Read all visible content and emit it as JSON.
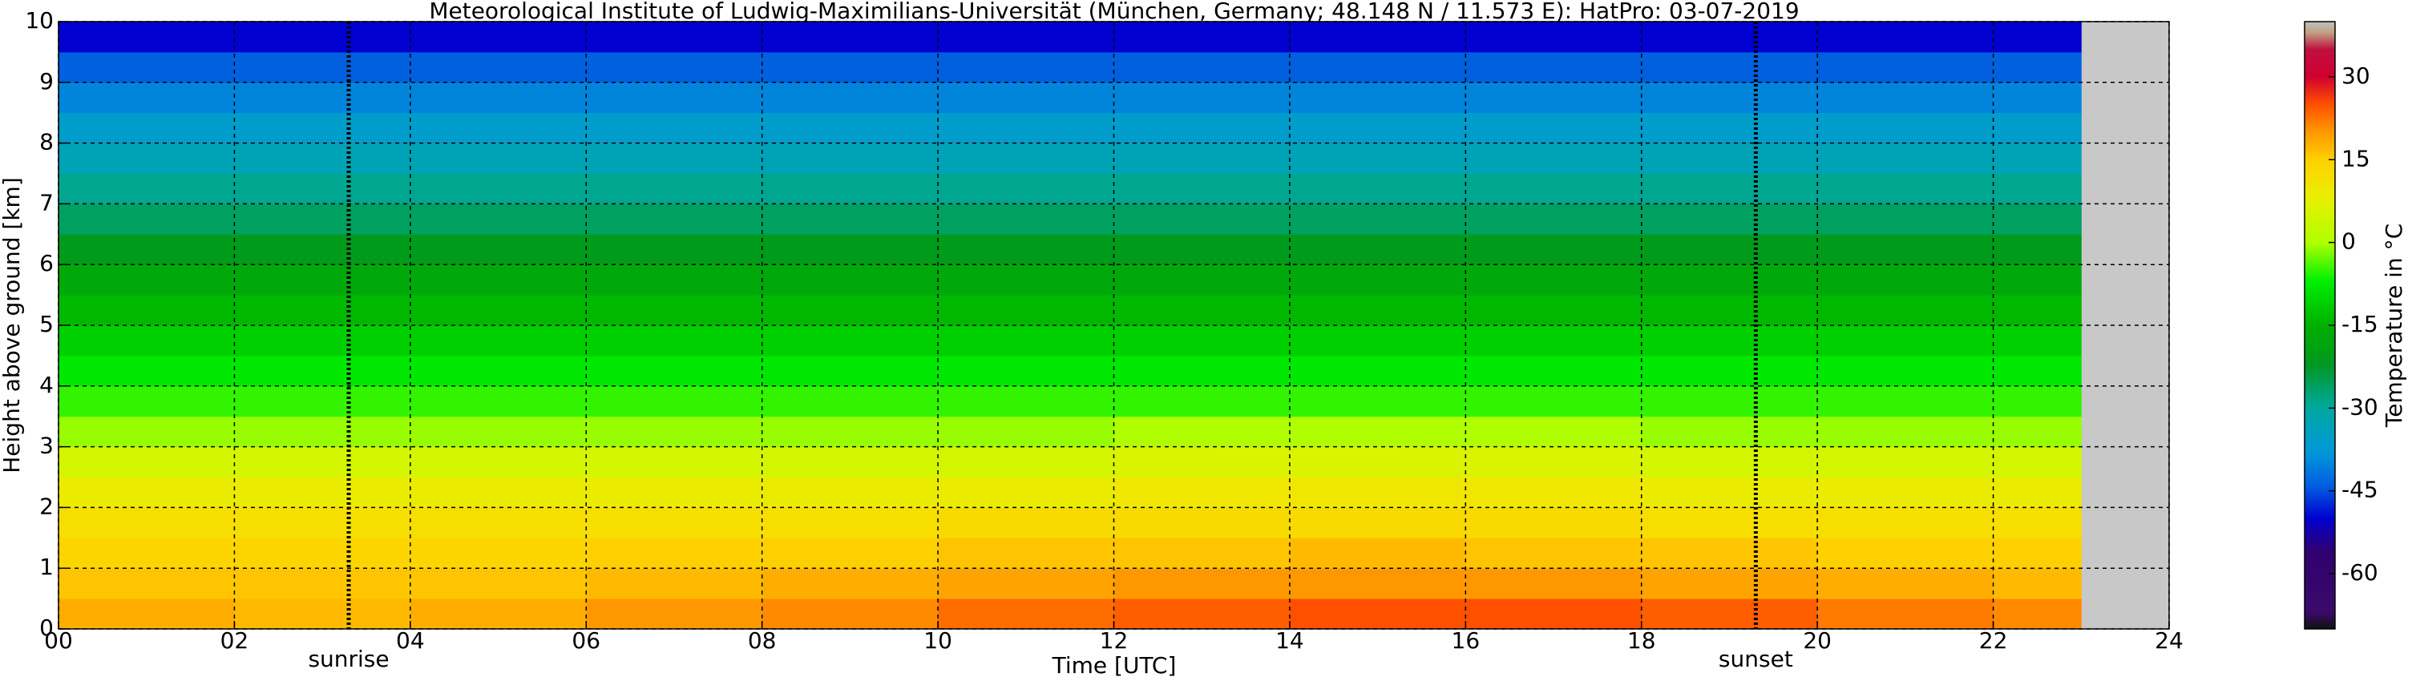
{
  "chart_data": {
    "type": "heatmap",
    "title": "Meteorological Institute of Ludwig-Maximilians-Universität (München, Germany; 48.148 N / 11.573 E):    HatPro: 03-07-2019",
    "xlabel": "Time [UTC]",
    "ylabel": "Height above ground [km]",
    "xlim": [
      0,
      24
    ],
    "ylim": [
      0,
      10
    ],
    "xticks": [
      {
        "value": 0,
        "label": "00"
      },
      {
        "value": 2,
        "label": "02"
      },
      {
        "value": 4,
        "label": "04"
      },
      {
        "value": 6,
        "label": "06"
      },
      {
        "value": 8,
        "label": "08"
      },
      10,
      12,
      14,
      16,
      18,
      20,
      22,
      24
    ],
    "yticks": [
      0,
      1,
      2,
      3,
      4,
      5,
      6,
      7,
      8,
      9,
      10
    ],
    "grid": true,
    "x": [
      0,
      2,
      4,
      6,
      8,
      10,
      12,
      14,
      16,
      18,
      20,
      22,
      23
    ],
    "y": [
      0,
      0.5,
      1,
      1.5,
      2,
      2.5,
      3,
      3.5,
      4,
      4.5,
      5,
      5.5,
      6,
      6.5,
      7,
      7.5,
      8,
      8.5,
      9,
      9.5,
      10
    ],
    "values": [
      [
        18,
        17,
        18,
        20,
        21,
        23,
        24,
        25,
        25,
        24,
        22,
        21
      ],
      [
        16,
        16,
        16,
        17,
        18,
        19,
        20,
        20,
        20,
        19,
        18,
        17
      ],
      [
        14,
        14,
        14,
        15,
        15,
        16,
        16,
        17,
        16,
        16,
        15,
        15
      ],
      [
        12,
        12,
        12,
        12,
        12,
        13,
        13,
        13,
        13,
        12,
        12,
        12
      ],
      [
        9,
        9,
        9,
        9,
        9,
        9,
        10,
        10,
        10,
        9,
        9,
        9
      ],
      [
        5,
        5,
        5,
        5,
        5,
        5,
        6,
        6,
        6,
        5,
        5,
        5
      ],
      [
        -1,
        -1,
        -1,
        -1,
        -1,
        -1,
        0,
        0,
        0,
        -1,
        -1,
        -1
      ],
      [
        -5,
        -5,
        -5,
        -5,
        -5,
        -5,
        -5,
        -5,
        -5,
        -5,
        -5,
        -5
      ],
      [
        -8,
        -8,
        -8,
        -8,
        -8,
        -8,
        -8,
        -8,
        -8,
        -8,
        -8,
        -8
      ],
      [
        -11,
        -11,
        -11,
        -11,
        -11,
        -11,
        -11,
        -11,
        -11,
        -11,
        -11,
        -11
      ],
      [
        -14,
        -14,
        -14,
        -14,
        -14,
        -14,
        -14,
        -14,
        -14,
        -14,
        -14,
        -14
      ],
      [
        -17,
        -17,
        -17,
        -17,
        -17,
        -17,
        -17,
        -17,
        -17,
        -17,
        -17,
        -17
      ],
      [
        -21,
        -21,
        -21,
        -21,
        -21,
        -21,
        -21,
        -21,
        -21,
        -21,
        -21,
        -21
      ],
      [
        -26,
        -26,
        -26,
        -26,
        -26,
        -26,
        -26,
        -26,
        -26,
        -26,
        -26,
        -26
      ],
      [
        -29,
        -29,
        -29,
        -29,
        -29,
        -29,
        -29,
        -29,
        -29,
        -29,
        -29,
        -29
      ],
      [
        -33,
        -33,
        -33,
        -33,
        -33,
        -33,
        -33,
        -33,
        -33,
        -33,
        -33,
        -33
      ],
      [
        -36,
        -36,
        -36,
        -36,
        -36,
        -36,
        -36,
        -36,
        -36,
        -36,
        -36,
        -36
      ],
      [
        -40,
        -40,
        -40,
        -40,
        -40,
        -40,
        -40,
        -40,
        -40,
        -40,
        -40,
        -40
      ],
      [
        -44,
        -44,
        -44,
        -44,
        -44,
        -44,
        -44,
        -44,
        -44,
        -44,
        -44,
        -44
      ],
      [
        -50,
        -50,
        -50,
        -50,
        -50,
        -50,
        -50,
        -50,
        -50,
        -50,
        -50,
        -50
      ]
    ],
    "markers": [
      {
        "x": 3.3,
        "label": "sunrise"
      },
      {
        "x": 19.3,
        "label": "sunset"
      }
    ],
    "colorbar_label": "Temperature in °C",
    "clim": [
      -70,
      40
    ],
    "cticks": [
      -60,
      -45,
      -30,
      -15,
      0,
      15,
      30
    ],
    "colorscale": [
      {
        "value": -70,
        "color": "#101010"
      },
      {
        "value": -67,
        "color": "#3a0a6a"
      },
      {
        "value": -56,
        "color": "#300070"
      },
      {
        "value": -50,
        "color": "#0000d0"
      },
      {
        "value": -44,
        "color": "#0060e0"
      },
      {
        "value": -38,
        "color": "#0098d8"
      },
      {
        "value": -30,
        "color": "#00a8a0"
      },
      {
        "value": -22,
        "color": "#009820"
      },
      {
        "value": -15,
        "color": "#00b000"
      },
      {
        "value": -7,
        "color": "#00f000"
      },
      {
        "value": 0,
        "color": "#b0ff00"
      },
      {
        "value": 8,
        "color": "#e8f000"
      },
      {
        "value": 15,
        "color": "#ffd000"
      },
      {
        "value": 20,
        "color": "#ff9800"
      },
      {
        "value": 25,
        "color": "#ff5000"
      },
      {
        "value": 30,
        "color": "#d00030"
      },
      {
        "value": 35,
        "color": "#c01040"
      },
      {
        "value": 38,
        "color": "#c0a080"
      },
      {
        "value": 40,
        "color": "#c0c0c0"
      }
    ],
    "missing_color": "#c8c8c8"
  }
}
